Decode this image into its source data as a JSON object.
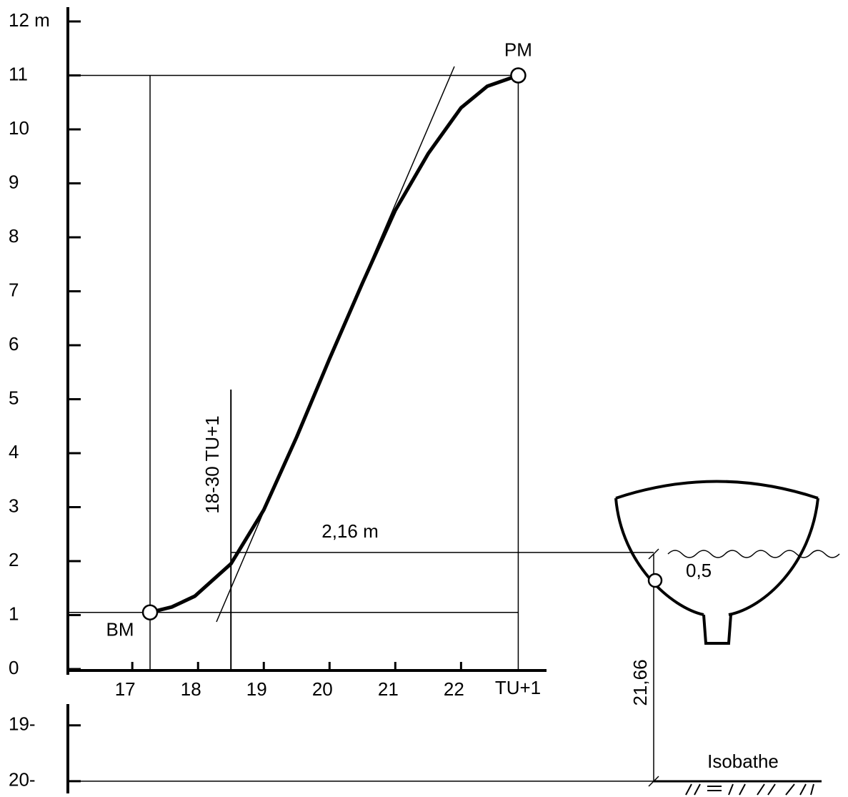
{
  "chart_data": {
    "type": "line",
    "x": [
      17.27,
      17.6,
      17.95,
      18.5,
      19,
      19.5,
      20,
      20.5,
      21,
      21.5,
      22,
      22.4,
      22.87
    ],
    "values": [
      1.05,
      1.15,
      1.35,
      1.95,
      2.95,
      4.3,
      5.75,
      7.15,
      8.5,
      9.55,
      10.4,
      10.8,
      11
    ],
    "color": "#000000",
    "xlim": [
      16.02,
      23.3
    ],
    "ylim": [
      0,
      12
    ],
    "xticks": [
      17,
      18,
      19,
      20,
      21,
      22
    ],
    "yticks": [
      0,
      1,
      2,
      3,
      4,
      5,
      6,
      7,
      8,
      9,
      10,
      11,
      {
        "value": 12,
        "label": "12 m"
      }
    ],
    "x_label": "TU+1",
    "points": [
      {
        "label": "BM",
        "x": 17.27,
        "y": 1.05
      },
      {
        "label": "PM",
        "x": 22.87,
        "y": 11
      }
    ],
    "time_marker": {
      "value": 18.5,
      "label": "18-30 TU+1"
    },
    "level_marker": {
      "value": 2.16,
      "label": "2,16 m"
    },
    "depth_axis": {
      "lim": [
        18.62,
        20.22
      ],
      "ticks": [
        {
          "value": 19,
          "label": "19-"
        },
        {
          "value": 20,
          "label": "20-"
        }
      ]
    },
    "draft_label": "0,5",
    "depth_label": "21,66",
    "isobath_label": "Isobathe"
  }
}
